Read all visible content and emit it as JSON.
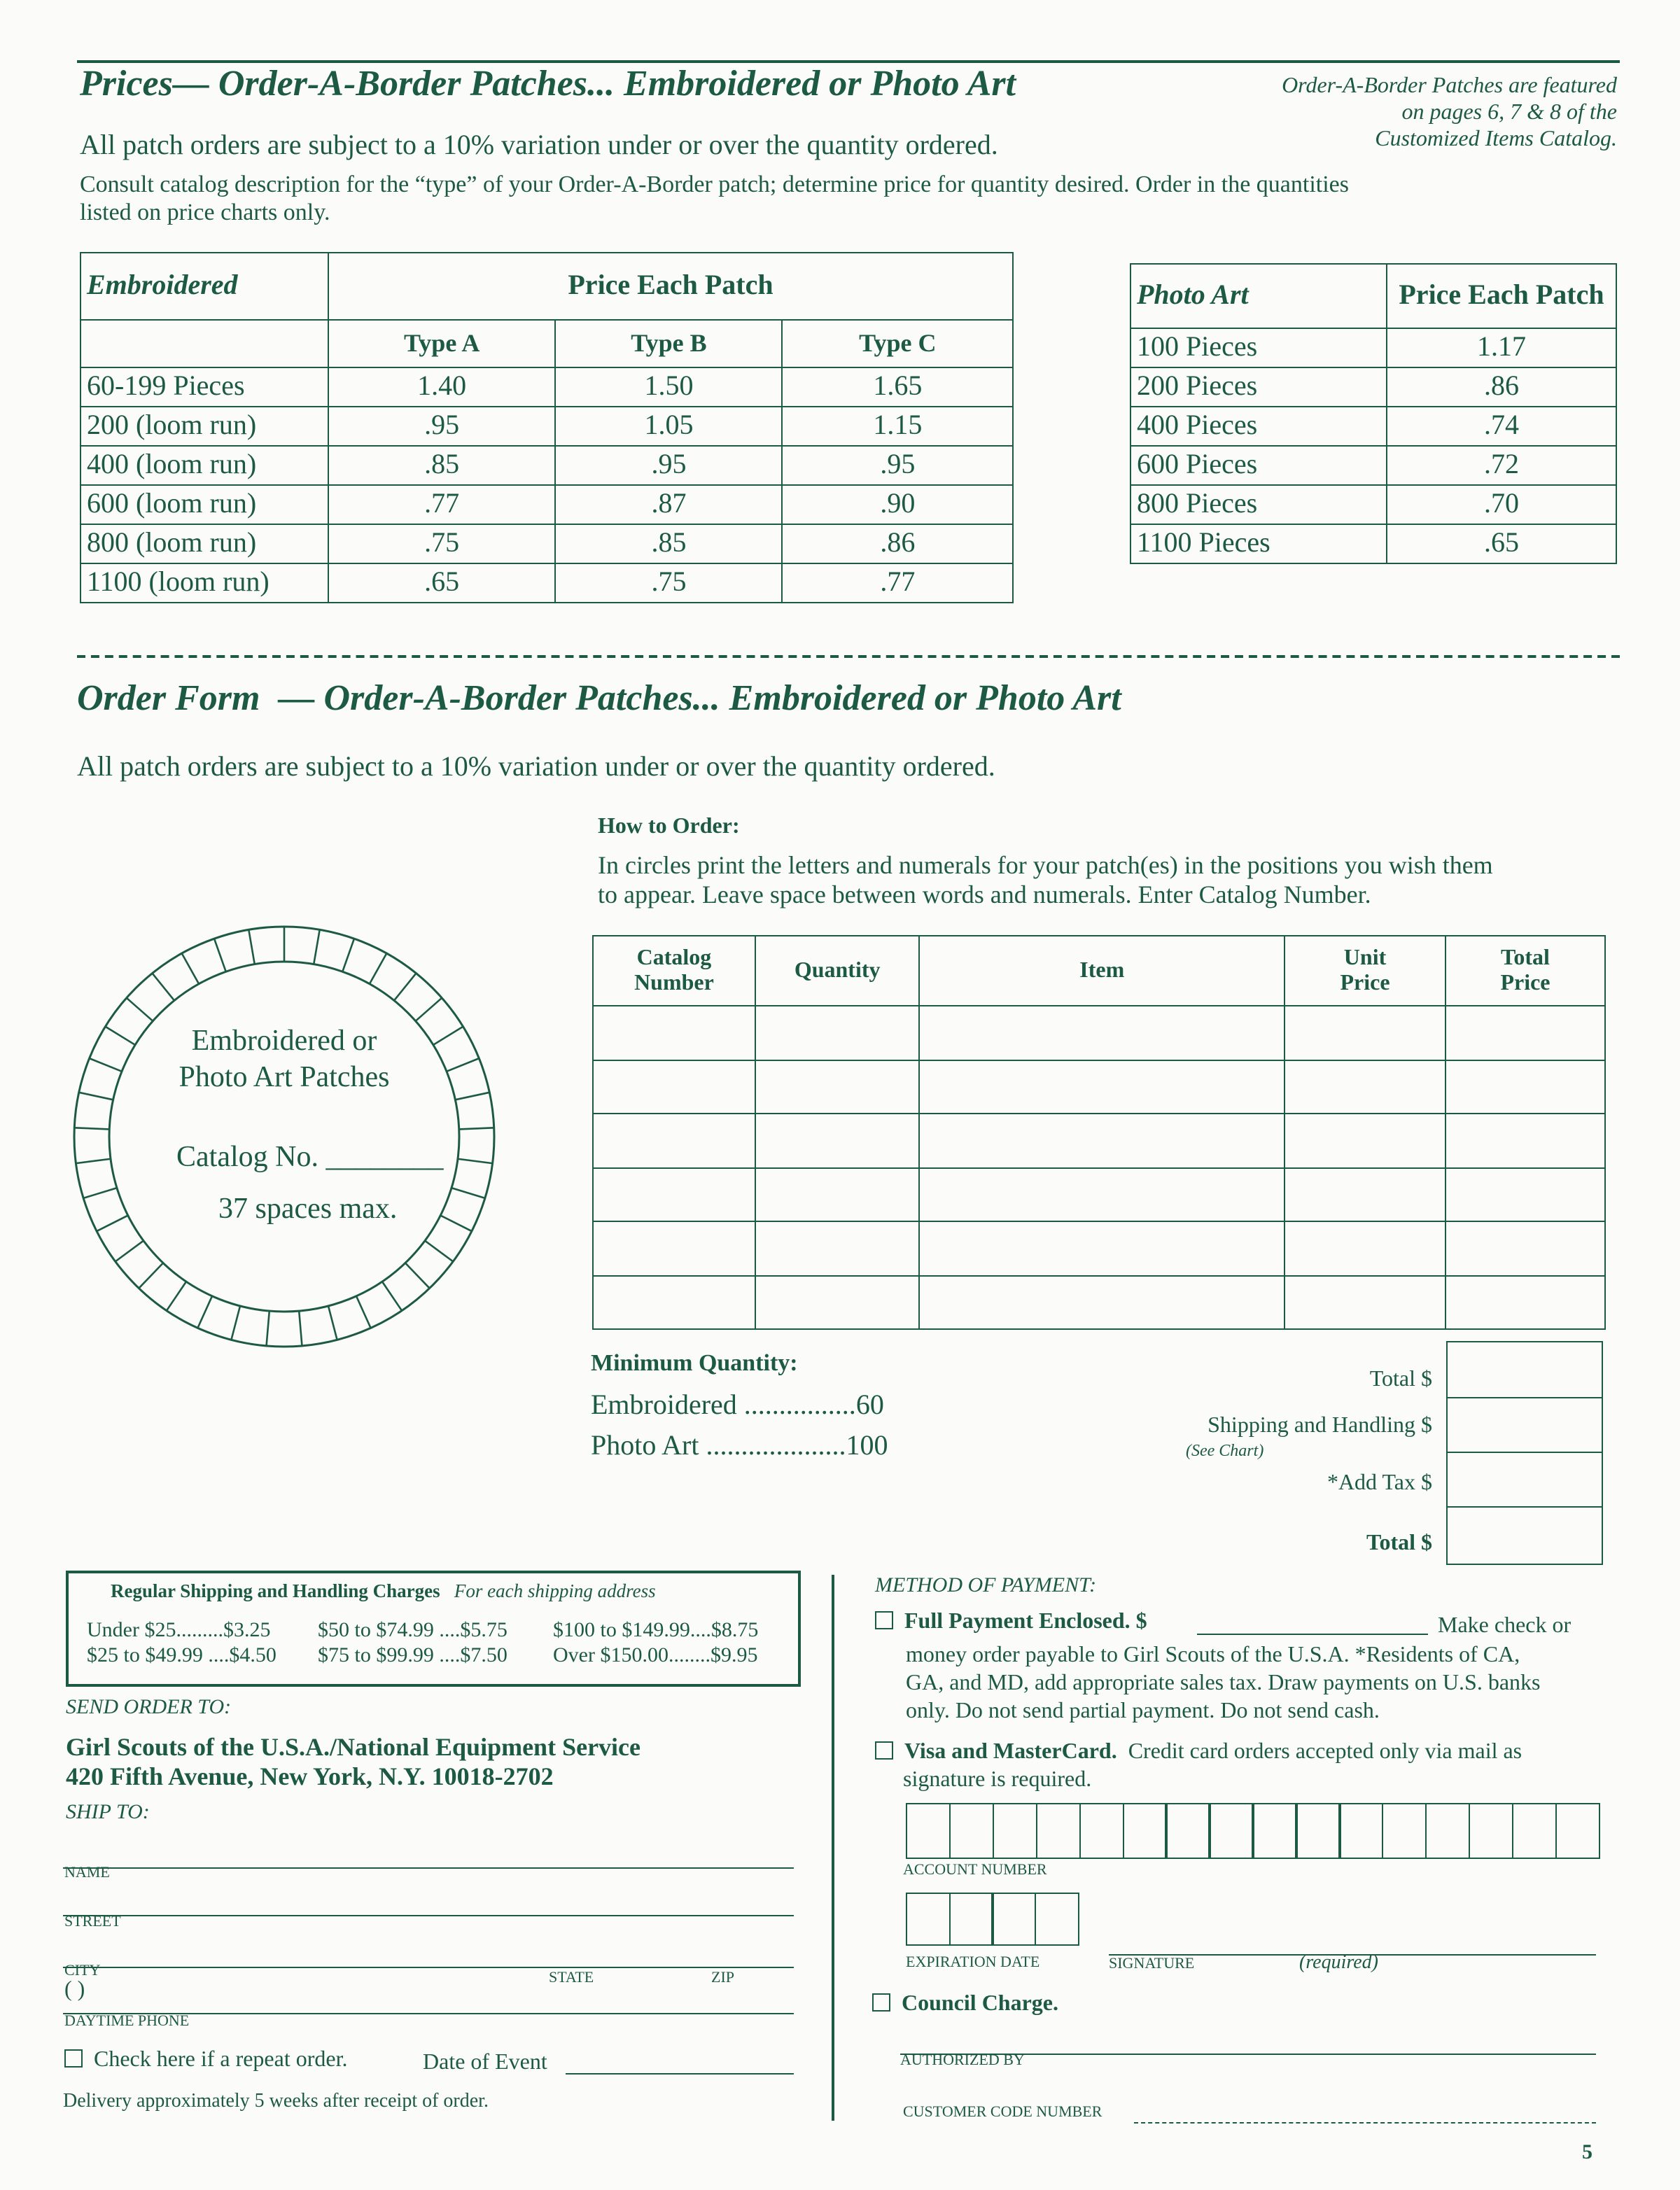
{
  "prices": {
    "title": "Prices— Order-A-Border Patches... Embroidered or Photo Art",
    "note": [
      "Order-A-Border Patches are featured",
      "on pages 6, 7 & 8 of the",
      "Customized Items Catalog."
    ],
    "variation": "All patch orders are subject to a 10% variation under or over the quantity ordered.",
    "consult": [
      "Consult catalog description for the “type” of your Order-A-Border patch; determine price for quantity desired. Order in the quantities",
      "listed on price charts only."
    ],
    "embroidered": {
      "title": "Embroidered",
      "price_header": "Price Each Patch",
      "columns": [
        "Type A",
        "Type B",
        "Type C"
      ],
      "rows": [
        [
          "60-199 Pieces",
          "1.40",
          "1.50",
          "1.65"
        ],
        [
          "200 (loom run)",
          ".95",
          "1.05",
          "1.15"
        ],
        [
          "400 (loom run)",
          ".85",
          ".95",
          ".95"
        ],
        [
          "600 (loom run)",
          ".77",
          ".87",
          ".90"
        ],
        [
          "800 (loom run)",
          ".75",
          ".85",
          ".86"
        ],
        [
          "1100 (loom run)",
          ".65",
          ".75",
          ".77"
        ]
      ]
    },
    "photo_art": {
      "title": "Photo Art",
      "price_header": "Price Each Patch",
      "rows": [
        [
          "100 Pieces",
          "1.17"
        ],
        [
          "200 Pieces",
          ".86"
        ],
        [
          "400 Pieces",
          ".74"
        ],
        [
          "600 Pieces",
          ".72"
        ],
        [
          "800 Pieces",
          ".70"
        ],
        [
          "1100 Pieces",
          ".65"
        ]
      ]
    }
  },
  "order_form": {
    "title_a": "Order Form",
    "title_b": "— Order-A-Border Patches... Embroidered or Photo Art",
    "variation": "All patch orders are subject to a 10% variation under or over the quantity ordered.",
    "how_title": "How to Order:",
    "how_text": [
      "In circles print the letters and numerals for your patch(es) in the positions you wish them",
      "to appear. Leave space between words and numerals. Enter Catalog Number."
    ],
    "circle": {
      "line1": "Embroidered or",
      "line2": "Photo Art Patches",
      "catalog": "Catalog No. ________",
      "max": "37 spaces max."
    },
    "table_headers": [
      [
        "Catalog",
        "Number"
      ],
      [
        "Quantity"
      ],
      [
        "Item"
      ],
      [
        "Unit",
        "Price"
      ],
      [
        "Total",
        "Price"
      ]
    ],
    "min_title": "Minimum Quantity:",
    "min_rows": [
      [
        "Embroidered ................",
        "60"
      ],
      [
        "Photo Art ....................",
        "100"
      ]
    ],
    "totals": {
      "total": "Total $",
      "shipping": "Shipping and Handling $",
      "see_chart": "(See Chart)",
      "tax": "*Add Tax $",
      "grand": "Total $"
    }
  },
  "shipping": {
    "title": "Regular Shipping and Handling Charges",
    "subtitle": "For each shipping address",
    "rows": [
      [
        "Under $25.........$3.25",
        "$50 to $74.99 ....$5.75",
        "$100 to $149.99....$8.75"
      ],
      [
        "$25 to $49.99 ....$4.50",
        "$75 to $99.99 ....$7.50",
        "Over $150.00........$9.95"
      ]
    ]
  },
  "send": {
    "label": "SEND ORDER TO:",
    "line1": "Girl Scouts of the U.S.A./National Equipment Service",
    "line2": "420 Fifth Avenue, New York, N.Y. 10018-2702",
    "ship_to": "SHIP TO:",
    "name": "NAME",
    "street": "STREET",
    "city": "CITY",
    "state": "STATE",
    "zip": "ZIP",
    "phone_paren": "(                    )",
    "phone": "DAYTIME PHONE",
    "repeat": "Check here if a repeat order.",
    "date_event": "Date of Event",
    "delivery": "Delivery approximately 5 weeks after receipt of order."
  },
  "payment": {
    "title": "METHOD OF PAYMENT:",
    "full_bold": "Full Payment Enclosed. $",
    "full_tail": "Make check or",
    "full_text": [
      "money order payable to Girl Scouts of the U.S.A. *Residents of CA,",
      "GA, and MD, add appropriate sales tax. Draw payments on U.S. banks",
      "only. Do not send partial payment. Do not send cash."
    ],
    "visa_bold": "Visa and MasterCard.",
    "visa_text": "Credit card orders accepted only via mail as",
    "visa_text2": "signature is required.",
    "account": "ACCOUNT NUMBER",
    "expiration": "EXPIRATION DATE",
    "signature": "SIGNATURE",
    "required": "(required)",
    "council": "Council Charge.",
    "authorized": "AUTHORIZED BY",
    "customer_code": "CUSTOMER CODE NUMBER"
  },
  "page_number": "5",
  "colors": {
    "ink": "#1d5a45"
  }
}
